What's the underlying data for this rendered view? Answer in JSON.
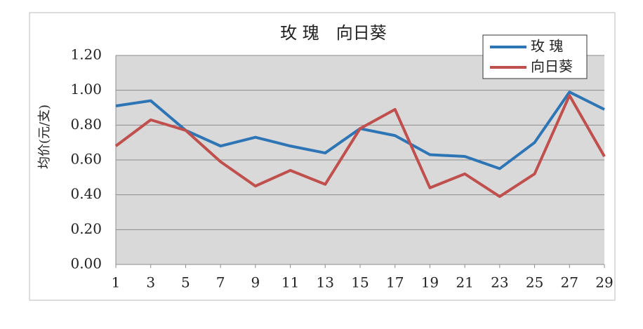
{
  "chart_data": {
    "type": "line",
    "title": "玫 瑰　向日葵",
    "y_label": "均价(元/支)",
    "x": [
      1,
      3,
      5,
      7,
      9,
      11,
      13,
      15,
      17,
      19,
      21,
      23,
      25,
      27,
      29
    ],
    "xlim": [
      1,
      29
    ],
    "xticks": [
      1,
      3,
      5,
      7,
      9,
      11,
      13,
      15,
      17,
      19,
      21,
      23,
      25,
      27,
      29
    ],
    "ylim": [
      0,
      1.2
    ],
    "yticks": [
      {
        "value": 0,
        "label": "0.00"
      },
      {
        "value": 0.2,
        "label": "0.20"
      },
      {
        "value": 0.4,
        "label": "0.40"
      },
      {
        "value": 0.6,
        "label": "0.60"
      },
      {
        "value": 0.8,
        "label": "0.80"
      },
      {
        "value": 1,
        "label": "1.00"
      },
      {
        "value": 1.2,
        "label": "1.20"
      }
    ],
    "grid": true,
    "legend": "top-right",
    "series": [
      {
        "name": "玫 瑰",
        "color": "#2e75b6",
        "values": [
          0.91,
          0.94,
          0.77,
          0.68,
          0.73,
          0.68,
          0.64,
          0.78,
          0.74,
          0.63,
          0.62,
          0.55,
          0.7,
          0.99,
          0.89
        ]
      },
      {
        "name": "向日葵",
        "color": "#c0504d",
        "values": [
          0.68,
          0.83,
          0.77,
          0.59,
          0.45,
          0.54,
          0.46,
          0.78,
          0.89,
          0.44,
          0.52,
          0.39,
          0.52,
          0.97,
          0.62
        ]
      }
    ]
  }
}
